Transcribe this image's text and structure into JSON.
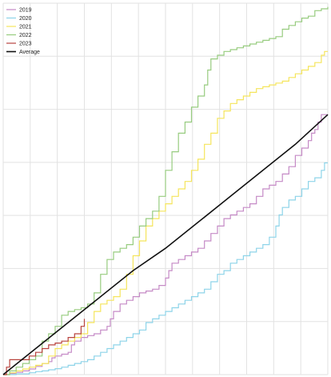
{
  "chart_data": {
    "type": "line",
    "title": "",
    "xlabel": "",
    "ylabel": "",
    "xlim": [
      0,
      100
    ],
    "ylim": [
      0,
      100
    ],
    "grid": true,
    "legend_placement": "top-left",
    "series": [
      {
        "name": "2019",
        "color": "#c58ac6",
        "x": [
          0,
          2,
          4,
          6,
          8,
          10,
          12,
          14,
          15,
          16,
          18,
          20,
          21,
          22,
          24,
          26,
          28,
          30,
          32,
          33,
          34,
          36,
          38,
          40,
          42,
          44,
          46,
          48,
          50,
          51,
          52,
          54,
          56,
          58,
          60,
          62,
          64,
          66,
          68,
          70,
          72,
          74,
          76,
          78,
          80,
          82,
          84,
          86,
          88,
          90,
          92,
          94,
          95,
          96,
          97,
          98,
          99,
          100
        ],
        "y": [
          0,
          0.3,
          0.6,
          1,
          1.5,
          2.2,
          3,
          3.5,
          4.5,
          5,
          5.5,
          6,
          8,
          9,
          10,
          10.5,
          11,
          12,
          13,
          15,
          17,
          19,
          20,
          21,
          22,
          22.5,
          23,
          24,
          26,
          28,
          30,
          31,
          32,
          33,
          34,
          36,
          38,
          40,
          42,
          43,
          44,
          45,
          46,
          48,
          50,
          51,
          52,
          54,
          56,
          59,
          61,
          63,
          65,
          66,
          68,
          70,
          70,
          70
        ]
      },
      {
        "name": "2020",
        "color": "#8dd4e9",
        "x": [
          0,
          4,
          8,
          10,
          12,
          14,
          16,
          18,
          20,
          22,
          24,
          26,
          28,
          30,
          32,
          34,
          36,
          38,
          40,
          42,
          44,
          46,
          48,
          50,
          52,
          54,
          56,
          58,
          60,
          62,
          64,
          66,
          68,
          70,
          72,
          74,
          76,
          78,
          80,
          82,
          84,
          85,
          86,
          88,
          90,
          92,
          94,
          96,
          98,
          99,
          100
        ],
        "y": [
          0,
          0.2,
          0.5,
          0.8,
          1,
          1.3,
          1.6,
          2,
          2.5,
          3,
          3.5,
          4,
          5,
          6,
          7,
          8,
          9,
          10,
          11,
          12,
          14,
          15,
          16,
          17,
          18,
          19,
          20,
          21,
          22,
          23,
          25,
          27,
          28,
          30,
          31,
          32,
          33,
          34,
          35,
          37,
          40,
          43,
          45,
          47,
          48,
          50,
          52,
          53,
          55,
          57,
          57
        ]
      },
      {
        "name": "2021",
        "color": "#f5e55c",
        "x": [
          0,
          2,
          4,
          6,
          8,
          10,
          12,
          14,
          16,
          18,
          20,
          22,
          24,
          26,
          28,
          30,
          32,
          34,
          36,
          38,
          40,
          42,
          44,
          46,
          48,
          50,
          52,
          54,
          56,
          58,
          60,
          62,
          64,
          66,
          68,
          70,
          72,
          74,
          76,
          78,
          80,
          82,
          84,
          86,
          88,
          90,
          92,
          94,
          96,
          98,
          99,
          100
        ],
        "y": [
          0,
          0.5,
          1,
          1.5,
          2,
          2.5,
          3,
          5,
          7,
          8,
          9,
          10,
          11,
          14,
          17,
          19,
          20,
          21,
          23,
          27,
          32,
          36,
          40,
          42,
          44,
          46,
          48,
          50,
          52,
          55,
          58,
          62,
          65,
          69,
          71,
          73,
          74,
          75,
          76,
          77,
          77.5,
          78,
          78.5,
          79,
          80,
          81,
          82,
          83,
          84,
          86,
          87,
          87
        ]
      },
      {
        "name": "2022",
        "color": "#97cc7f",
        "x": [
          0,
          2,
          4,
          6,
          8,
          10,
          12,
          14,
          16,
          18,
          20,
          22,
          24,
          26,
          28,
          30,
          32,
          34,
          36,
          38,
          40,
          42,
          44,
          46,
          48,
          50,
          52,
          54,
          56,
          58,
          60,
          62,
          63,
          64,
          66,
          68,
          70,
          72,
          74,
          76,
          78,
          80,
          82,
          84,
          86,
          88,
          90,
          92,
          94,
          96,
          98,
          100
        ],
        "y": [
          0,
          1,
          2,
          3,
          4,
          5,
          9,
          11,
          13,
          16,
          17,
          17.5,
          18,
          19,
          22,
          27,
          31,
          33,
          34,
          35,
          37,
          40,
          42,
          44,
          48,
          55,
          60,
          65,
          68,
          72,
          75,
          78,
          82,
          85,
          86,
          87,
          87.5,
          88,
          88.5,
          89,
          89.5,
          90,
          90.5,
          91,
          93,
          94,
          95,
          96,
          96.5,
          98,
          98.5,
          99
        ]
      },
      {
        "name": "2023",
        "color": "#b8433e",
        "x": [
          0,
          1,
          2,
          4,
          5,
          6,
          8,
          10,
          12,
          14,
          16,
          18,
          20,
          22,
          24,
          25
        ],
        "y": [
          0,
          2,
          4,
          4,
          4,
          4,
          5,
          6,
          7,
          8,
          8.5,
          9,
          10,
          11,
          13,
          15
        ]
      },
      {
        "name": "Average",
        "color": "#111111",
        "x": [
          0,
          10,
          20,
          30,
          40,
          50,
          60,
          70,
          80,
          90,
          100
        ],
        "y": [
          0,
          7,
          14,
          21,
          28,
          34,
          41,
          48,
          55,
          62,
          70
        ]
      }
    ]
  }
}
